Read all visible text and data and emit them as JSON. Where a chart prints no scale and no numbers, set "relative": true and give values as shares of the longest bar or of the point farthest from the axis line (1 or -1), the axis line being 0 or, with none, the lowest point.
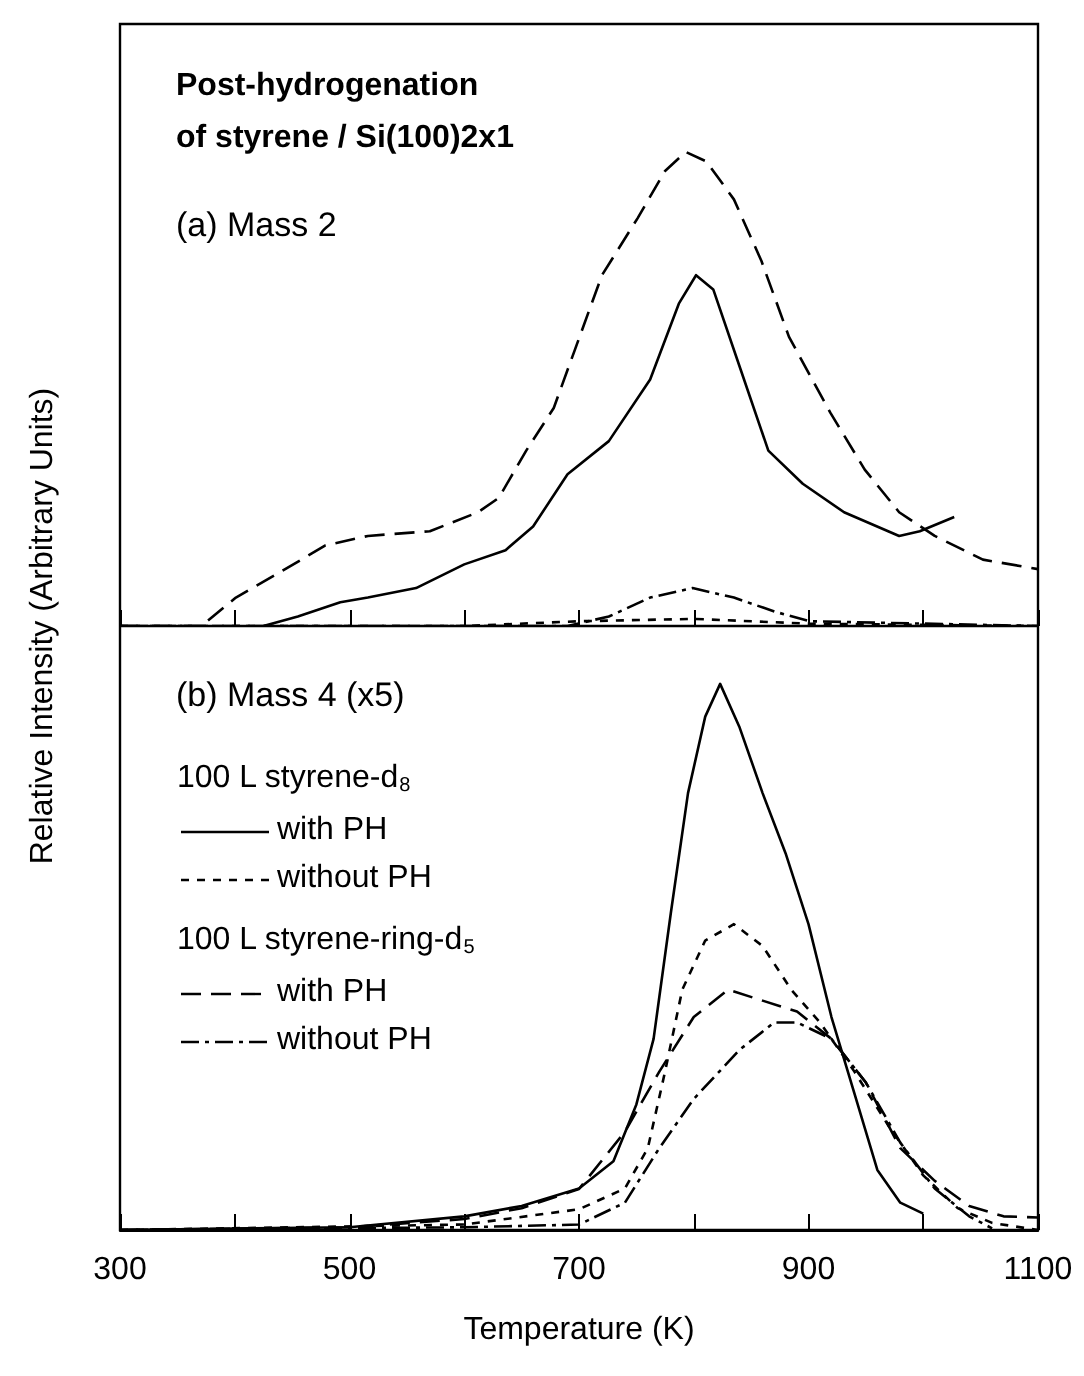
{
  "chart_data": [
    {
      "type": "line",
      "title": "Post-hydrogenation\nof styrene / Si(100)2x1",
      "ylabel": "Relative Intensity (Arbitrary Units)",
      "annotations": [
        "(a) Mass 2"
      ],
      "relative": true,
      "xlim": [
        300,
        1100
      ],
      "xticks": [
        {
          "value": 300,
          "label": null
        },
        {
          "value": 400,
          "label": null
        },
        {
          "value": 500,
          "label": null
        },
        {
          "value": 600,
          "label": null
        },
        {
          "value": 700,
          "label": null
        },
        {
          "value": 800,
          "label": null
        },
        {
          "value": 900,
          "label": null
        },
        {
          "value": 1000,
          "label": null
        },
        {
          "value": 1100,
          "label": null
        }
      ],
      "tick_labels": false,
      "legend": false,
      "grid": false,
      "series": [
        {
          "color": "#000000",
          "line_style": "solid",
          "x": [
            300,
            335,
            425,
            455,
            492,
            516,
            558,
            600,
            636,
            660,
            690,
            726,
            762,
            787,
            802,
            817,
            841,
            865,
            895,
            931,
            979,
            997,
            1027
          ],
          "values": [
            0,
            -0.005,
            0,
            0.02,
            0.05,
            0.06,
            0.08,
            0.13,
            0.16,
            0.21,
            0.32,
            0.39,
            0.52,
            0.68,
            0.74,
            0.71,
            0.54,
            0.37,
            0.3,
            0.24,
            0.19,
            0.2,
            0.23
          ]
        },
        {
          "color": "#000000",
          "line_style": "dotted",
          "x": [
            300,
            600,
            700,
            800,
            900,
            1100
          ],
          "values": [
            0,
            0,
            0.01,
            0.015,
            0.005,
            0
          ]
        },
        {
          "color": "#000000",
          "line_style": "dashed",
          "x": [
            300,
            371,
            401,
            437,
            479,
            516,
            570,
            612,
            630,
            654,
            678,
            696,
            720,
            751,
            775,
            793,
            811,
            835,
            859,
            883,
            919,
            949,
            979,
            1010,
            1052,
            1100
          ],
          "values": [
            0,
            0,
            0.06,
            0.11,
            0.17,
            0.19,
            0.2,
            0.24,
            0.27,
            0.37,
            0.46,
            0.58,
            0.74,
            0.86,
            0.96,
            1,
            0.98,
            0.9,
            0.77,
            0.61,
            0.45,
            0.33,
            0.24,
            0.19,
            0.14,
            0.12
          ]
        },
        {
          "color": "#000000",
          "line_style": "dashdot",
          "x": [
            300,
            690,
            726,
            762,
            799,
            835,
            871,
            901,
            1100
          ],
          "values": [
            0,
            0,
            0.02,
            0.06,
            0.08,
            0.06,
            0.03,
            0.01,
            0
          ]
        }
      ]
    },
    {
      "type": "line",
      "xlabel": "Temperature (K)",
      "annotations": [
        "(b) Mass 4 (x5)",
        "100 L styrene-d$_{8}$",
        "100 L styrene-ring-d$_{5}$"
      ],
      "relative": true,
      "xlim": [
        300,
        1100
      ],
      "xticks": [
        300,
        {
          "value": 400,
          "label": null
        },
        500,
        {
          "value": 600,
          "label": null
        },
        700,
        {
          "value": 800,
          "label": null
        },
        900,
        {
          "value": 1000,
          "label": null
        },
        1100
      ],
      "tick_labels": "x",
      "legend": "top left",
      "grid": false,
      "series": [
        {
          "name": "with PH",
          "color": "#000000",
          "line_style": "solid",
          "x": [
            300,
            500,
            600,
            650,
            700,
            730,
            750,
            765,
            780,
            795,
            810,
            823,
            840,
            860,
            880,
            900,
            920,
            940,
            960,
            980,
            1000
          ],
          "values": [
            0,
            0.005,
            0.025,
            0.044,
            0.076,
            0.126,
            0.23,
            0.35,
            0.58,
            0.8,
            0.94,
            1,
            0.92,
            0.8,
            0.69,
            0.56,
            0.39,
            0.25,
            0.11,
            0.05,
            0.03
          ]
        },
        {
          "name": "without PH",
          "color": "#000000",
          "line_style": "dotted",
          "x": [
            300,
            600,
            700,
            740,
            760,
            775,
            790,
            810,
            835,
            860,
            885,
            910,
            940,
            970,
            1000,
            1030,
            1060,
            1100
          ],
          "values": [
            0,
            0.01,
            0.038,
            0.076,
            0.15,
            0.29,
            0.44,
            0.53,
            0.56,
            0.52,
            0.44,
            0.38,
            0.29,
            0.19,
            0.1,
            0.04,
            0.013,
            0
          ]
        },
        {
          "name": "with PH",
          "color": "#000000",
          "line_style": "dashed",
          "x": [
            300,
            500,
            600,
            650,
            700,
            740,
            770,
            800,
            830,
            860,
            890,
            920,
            950,
            980,
            1010,
            1040,
            1070,
            1100
          ],
          "values": [
            0,
            0.005,
            0.02,
            0.04,
            0.075,
            0.18,
            0.29,
            0.39,
            0.44,
            0.42,
            0.4,
            0.35,
            0.27,
            0.15,
            0.09,
            0.044,
            0.025,
            0.023
          ]
        },
        {
          "name": "without PH",
          "color": "#000000",
          "line_style": "dashdot",
          "x": [
            300,
            600,
            700,
            740,
            770,
            800,
            840,
            870,
            890,
            920,
            950,
            980,
            1010,
            1040,
            1060
          ],
          "values": [
            0,
            0.005,
            0.01,
            0.05,
            0.15,
            0.24,
            0.33,
            0.38,
            0.38,
            0.35,
            0.27,
            0.16,
            0.076,
            0.025,
            0.003
          ]
        }
      ]
    }
  ]
}
